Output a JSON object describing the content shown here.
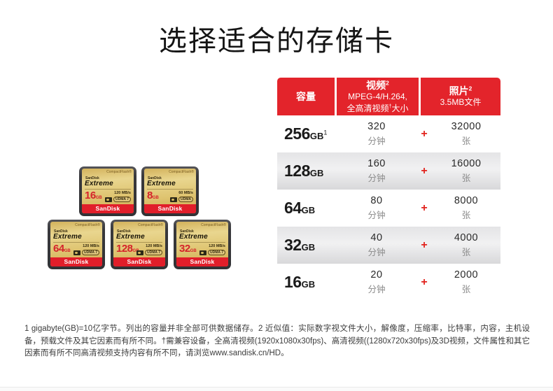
{
  "title": "选择适合的存储卡",
  "colors": {
    "brand_red": "#e3242b",
    "plus_red": "#e2231d",
    "card_gold": "#dfc572"
  },
  "table": {
    "header": {
      "capacity_label": "容量",
      "video_title": "视频",
      "video_sup": "2",
      "video_line2": "MPEG-4/H.264,",
      "video_line3_pre": "全高清视频",
      "video_line3_sup": "†",
      "video_line3_post": "大小",
      "photo_title": "照片",
      "photo_sup": "2",
      "photo_line2": "3.5MB文件"
    },
    "rows": [
      {
        "capacity": "256",
        "capacity_unit": "GB",
        "capacity_sup": "1",
        "video_value": "320",
        "video_unit": "分钟",
        "plus": "+",
        "photo_value": "32000",
        "photo_unit": "张"
      },
      {
        "capacity": "128",
        "capacity_unit": "GB",
        "capacity_sup": "",
        "video_value": "160",
        "video_unit": "分钟",
        "plus": "+",
        "photo_value": "16000",
        "photo_unit": "张"
      },
      {
        "capacity": "64",
        "capacity_unit": "GB",
        "capacity_sup": "",
        "video_value": "80",
        "video_unit": "分钟",
        "plus": "+",
        "photo_value": "8000",
        "photo_unit": "张"
      },
      {
        "capacity": "32",
        "capacity_unit": "GB",
        "capacity_sup": "",
        "video_value": "40",
        "video_unit": "分钟",
        "plus": "+",
        "photo_value": "4000",
        "photo_unit": "张"
      },
      {
        "capacity": "16",
        "capacity_unit": "GB",
        "capacity_sup": "",
        "video_value": "20",
        "video_unit": "分钟",
        "plus": "+",
        "photo_value": "2000",
        "photo_unit": "张"
      }
    ]
  },
  "cards": [
    {
      "format_label": "CompactFlash®",
      "brand": "SanDisk",
      "family": "Extreme",
      "capacity": "16",
      "capacity_unit": "GB",
      "speed": "120 MB/s",
      "udma": "UDMA 7",
      "logo": "SanDisk"
    },
    {
      "format_label": "CompactFlash®",
      "brand": "SanDisk",
      "family": "Extreme",
      "capacity": "8",
      "capacity_unit": "GB",
      "speed": "60 MB/s",
      "udma": "UDMA",
      "logo": "SanDisk"
    },
    {
      "format_label": "CompactFlash®",
      "brand": "SanDisk",
      "family": "Extreme",
      "capacity": "64",
      "capacity_unit": "GB",
      "speed": "120 MB/s",
      "udma": "UDMA 7",
      "logo": "SanDisk"
    },
    {
      "format_label": "CompactFlash®",
      "brand": "SanDisk",
      "family": "Extreme",
      "capacity": "128",
      "capacity_unit": "GB",
      "speed": "120 MB/s",
      "udma": "UDMA 7",
      "logo": "SanDisk"
    },
    {
      "format_label": "CompactFlash®",
      "brand": "SanDisk",
      "family": "Extreme",
      "capacity": "32",
      "capacity_unit": "GB",
      "speed": "120 MB/s",
      "udma": "UDMA 7",
      "logo": "SanDisk"
    }
  ],
  "footnote": "1  gigabyte(GB)=10亿字节。列出的容量并非全部可供数据储存。2  近似值：实际数字视文件大小，解像度，压缩率，比特率，内容，主机设备，预载文件及其它因素而有所不同。†需兼容设备，全高清视频(1920x1080x30fps)、高清视频((1280x720x30fps)及3D视频，文件属性和其它因素而有所不同高清视频支持内容有所不同，请浏览www.sandisk.cn/HD。"
}
